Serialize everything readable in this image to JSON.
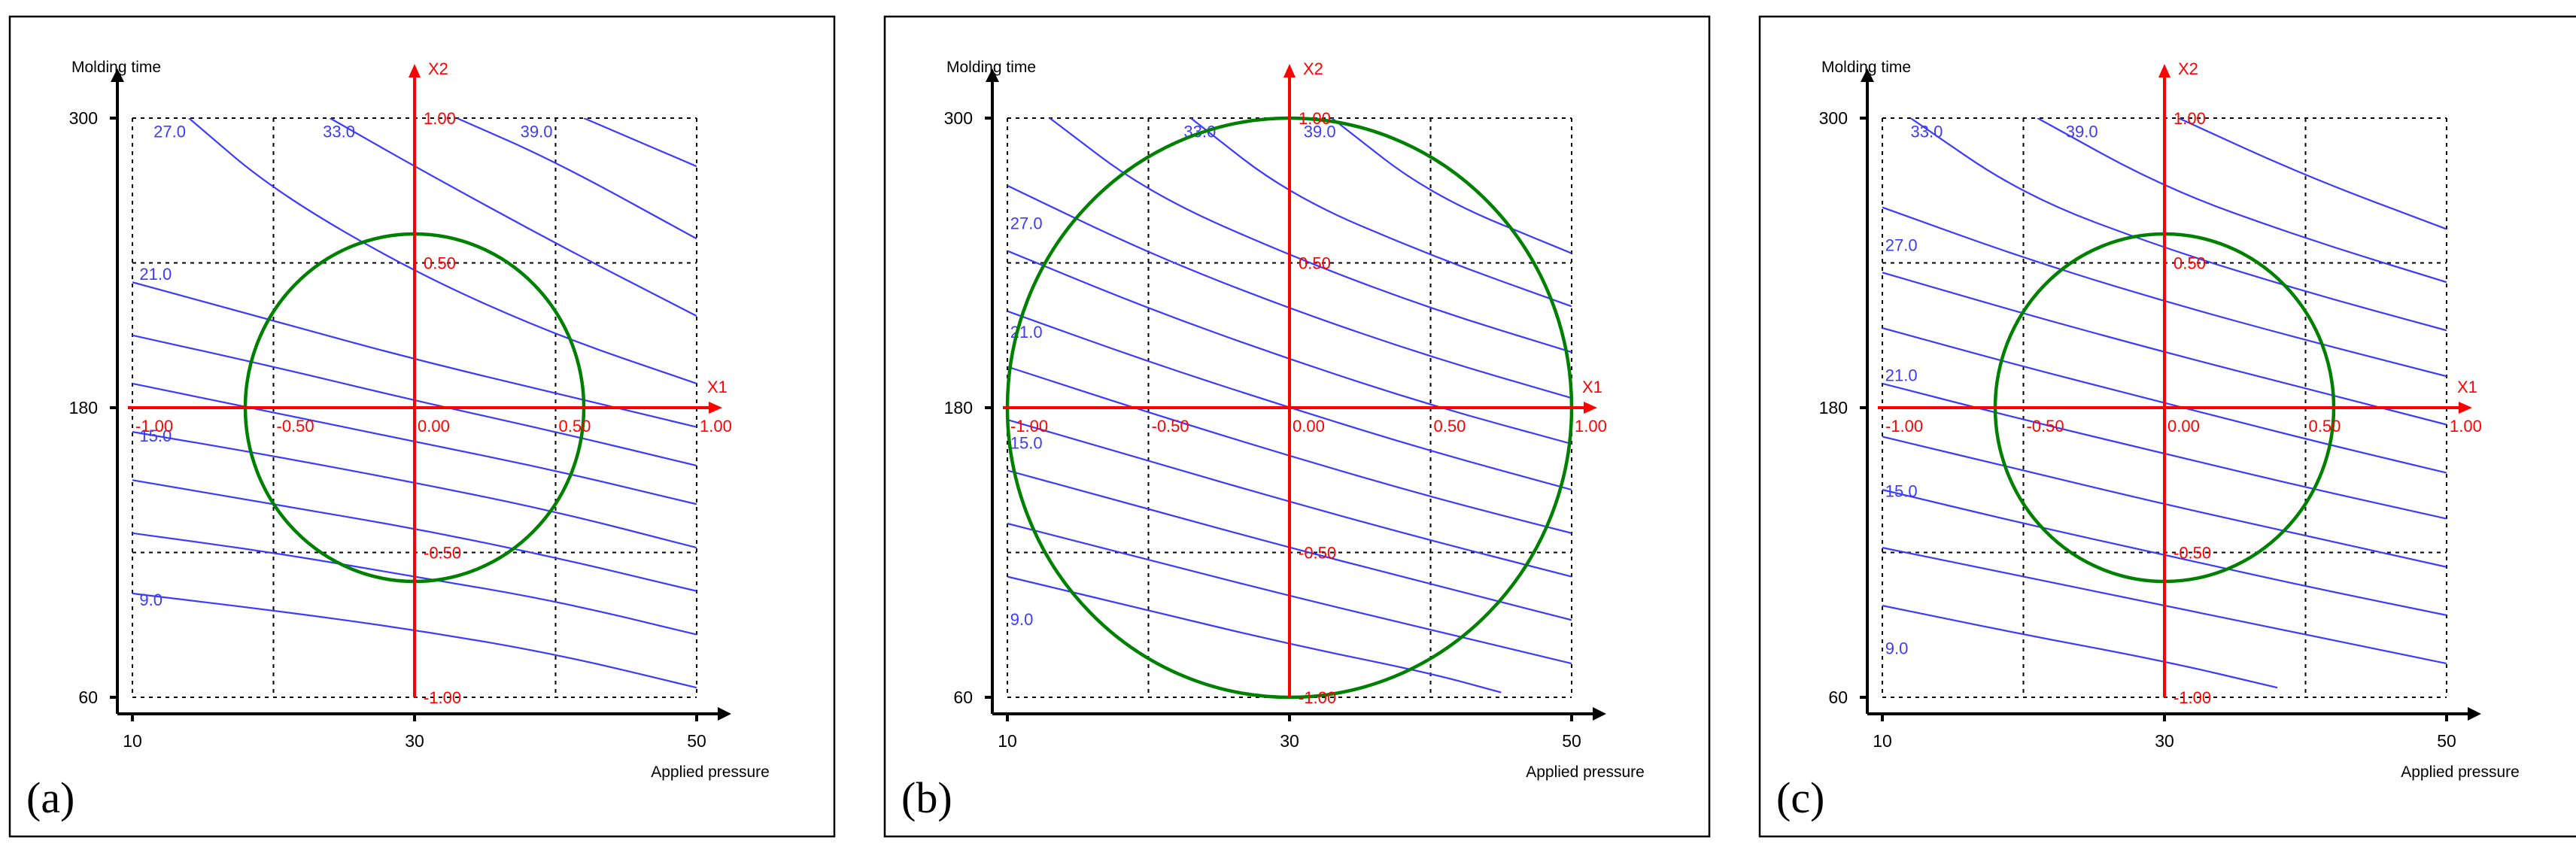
{
  "colors": {
    "axis": "#000000",
    "coded_axis": "#ff0000",
    "contour": "#3b3bff",
    "experimental_region": "#008000",
    "grid": "#000000"
  },
  "chart_data": [
    {
      "type": "contour",
      "panel_label": "(a)",
      "xlabel": "Applied pressure",
      "ylabel": "Molding time",
      "x_ticks": [
        "10",
        "30",
        "50"
      ],
      "y_ticks": [
        "300",
        "180",
        "60"
      ],
      "xlim": [
        10,
        50
      ],
      "ylim": [
        60,
        300
      ],
      "coded_axes": {
        "x_name": "X1",
        "y_name": "X2",
        "x_labels": [
          "-1.00",
          "-0.50",
          "0.00",
          "0.50",
          "1.00"
        ],
        "y_labels": [
          "1.00",
          "0.50",
          "-0.50",
          "-1.00"
        ]
      },
      "contour_labels": [
        "27.0",
        "33.0",
        "39.0",
        "21.0",
        "15.0",
        "9.0"
      ],
      "experimental_region": {
        "center": [
          30,
          180
        ],
        "radius_coded": 0.6
      },
      "contours": [
        {
          "level": 9.0,
          "points": [
            [
              10,
              103
            ],
            [
              20,
              96
            ],
            [
              30,
              88
            ],
            [
              40,
              78
            ],
            [
              50,
              64
            ]
          ]
        },
        {
          "level": 12.0,
          "points": [
            [
              10,
              128
            ],
            [
              20,
              120
            ],
            [
              30,
              110
            ],
            [
              40,
              100
            ],
            [
              50,
              86
            ]
          ]
        },
        {
          "level": 15.0,
          "points": [
            [
              10,
              150
            ],
            [
              20,
              140
            ],
            [
              30,
              130
            ],
            [
              40,
              118
            ],
            [
              50,
              104
            ]
          ]
        },
        {
          "level": 18.0,
          "points": [
            [
              10,
              170
            ],
            [
              20,
              160
            ],
            [
              30,
              149
            ],
            [
              40,
              137
            ],
            [
              50,
              122
            ]
          ]
        },
        {
          "level": 21.0,
          "points": [
            [
              10,
              190
            ],
            [
              20,
              178
            ],
            [
              30,
              166
            ],
            [
              40,
              154
            ],
            [
              50,
              140
            ]
          ]
        },
        {
          "level": 24.0,
          "points": [
            [
              10,
              210
            ],
            [
              20,
              197
            ],
            [
              30,
              183
            ],
            [
              40,
              170
            ],
            [
              50,
              156
            ]
          ]
        },
        {
          "level": 27.0,
          "points": [
            [
              10,
              232
            ],
            [
              20,
              216
            ],
            [
              30,
              200
            ],
            [
              40,
              186
            ],
            [
              50,
              172
            ]
          ]
        },
        {
          "level": 30.0,
          "points": [
            [
              14,
              300
            ],
            [
              20,
              270
            ],
            [
              30,
              236
            ],
            [
              40,
              210
            ],
            [
              50,
              190
            ]
          ]
        },
        {
          "level": 33.0,
          "points": [
            [
              24,
              300
            ],
            [
              30,
              280
            ],
            [
              40,
              248
            ],
            [
              50,
              218
            ]
          ]
        },
        {
          "level": 36.0,
          "points": [
            [
              33,
              300
            ],
            [
              40,
              282
            ],
            [
              50,
              250
            ]
          ]
        },
        {
          "level": 39.0,
          "points": [
            [
              42,
              300
            ],
            [
              50,
              280
            ]
          ]
        }
      ],
      "label_positions": [
        {
          "text": "27.0",
          "at": [
            11.5,
            292
          ]
        },
        {
          "text": "33.0",
          "at": [
            23.5,
            292
          ]
        },
        {
          "text": "39.0",
          "at": [
            37.5,
            292
          ]
        },
        {
          "text": "21.0",
          "at": [
            10.5,
            233
          ]
        },
        {
          "text": "15.0",
          "at": [
            10.5,
            166
          ]
        },
        {
          "text": "9.0",
          "at": [
            10.5,
            98
          ]
        }
      ]
    },
    {
      "type": "contour",
      "panel_label": "(b)",
      "xlabel": "Applied pressure",
      "ylabel": "Molding time",
      "x_ticks": [
        "10",
        "30",
        "50"
      ],
      "y_ticks": [
        "300",
        "180",
        "60"
      ],
      "xlim": [
        10,
        50
      ],
      "ylim": [
        60,
        300
      ],
      "coded_axes": {
        "x_name": "X1",
        "y_name": "X2",
        "x_labels": [
          "-1.00",
          "-0.50",
          "0.00",
          "0.50",
          "1.00"
        ],
        "y_labels": [
          "1.00",
          "0.50",
          "-0.50",
          "-1.00"
        ]
      },
      "contour_labels": [
        "33.0",
        "39.0",
        "27.0",
        "21.0",
        "15.0",
        "9.0"
      ],
      "experimental_region": {
        "center": [
          30,
          180
        ],
        "radius_coded": 1.0
      },
      "contours": [
        {
          "level": 9.0,
          "points": [
            [
              10,
              110
            ],
            [
              20,
              96
            ],
            [
              30,
              82
            ],
            [
              40,
              70
            ],
            [
              45,
              62
            ]
          ]
        },
        {
          "level": 12.0,
          "points": [
            [
              10,
              132
            ],
            [
              20,
              117
            ],
            [
              30,
              102
            ],
            [
              40,
              88
            ],
            [
              50,
              74
            ]
          ]
        },
        {
          "level": 15.0,
          "points": [
            [
              10,
              154
            ],
            [
              20,
              138
            ],
            [
              30,
              122
            ],
            [
              40,
              107
            ],
            [
              50,
              92
            ]
          ]
        },
        {
          "level": 18.0,
          "points": [
            [
              10,
              175
            ],
            [
              20,
              158
            ],
            [
              30,
              141
            ],
            [
              40,
              125
            ],
            [
              50,
              110
            ]
          ]
        },
        {
          "level": 21.0,
          "points": [
            [
              10,
              197
            ],
            [
              20,
              178
            ],
            [
              30,
              160
            ],
            [
              40,
              143
            ],
            [
              50,
              128
            ]
          ]
        },
        {
          "level": 24.0,
          "points": [
            [
              10,
              220
            ],
            [
              20,
              199
            ],
            [
              30,
              180
            ],
            [
              40,
              162
            ],
            [
              50,
              146
            ]
          ]
        },
        {
          "level": 27.0,
          "points": [
            [
              10,
              245
            ],
            [
              20,
              221
            ],
            [
              30,
              200
            ],
            [
              40,
              181
            ],
            [
              50,
              165
            ]
          ]
        },
        {
          "level": 30.0,
          "points": [
            [
              10,
              272
            ],
            [
              20,
              244
            ],
            [
              30,
              221
            ],
            [
              40,
              201
            ],
            [
              50,
              184
            ]
          ]
        },
        {
          "level": 33.0,
          "points": [
            [
              13,
              300
            ],
            [
              20,
              269
            ],
            [
              30,
              243
            ],
            [
              40,
              221
            ],
            [
              50,
              203
            ]
          ]
        },
        {
          "level": 36.0,
          "points": [
            [
              23,
              300
            ],
            [
              30,
              268
            ],
            [
              40,
              243
            ],
            [
              50,
              222
            ]
          ]
        },
        {
          "level": 39.0,
          "points": [
            [
              33,
              300
            ],
            [
              40,
              268
            ],
            [
              50,
              244
            ]
          ]
        }
      ],
      "label_positions": [
        {
          "text": "33.0",
          "at": [
            22.5,
            292
          ]
        },
        {
          "text": "39.0",
          "at": [
            31.0,
            292
          ]
        },
        {
          "text": "27.0",
          "at": [
            10.2,
            254
          ]
        },
        {
          "text": "21.0",
          "at": [
            10.2,
            209
          ]
        },
        {
          "text": "15.0",
          "at": [
            10.2,
            163
          ]
        },
        {
          "text": "9.0",
          "at": [
            10.2,
            90
          ]
        }
      ]
    },
    {
      "type": "contour",
      "panel_label": "(c)",
      "xlabel": "Applied pressure",
      "ylabel": "Molding time",
      "x_ticks": [
        "10",
        "30",
        "50"
      ],
      "y_ticks": [
        "300",
        "180",
        "60"
      ],
      "xlim": [
        10,
        50
      ],
      "ylim": [
        60,
        300
      ],
      "coded_axes": {
        "x_name": "X1",
        "y_name": "X2",
        "x_labels": [
          "-1.00",
          "-0.50",
          "0.00",
          "0.50",
          "1.00"
        ],
        "y_labels": [
          "1.00",
          "0.50",
          "-0.50",
          "-1.00"
        ]
      },
      "contour_labels": [
        "33.0",
        "39.0",
        "27.0",
        "21.0",
        "15.0",
        "9.0"
      ],
      "experimental_region": {
        "center": [
          30,
          180
        ],
        "radius_coded": 0.6
      },
      "contours": [
        {
          "level": 9.0,
          "points": [
            [
              10,
              98
            ],
            [
              20,
              86
            ],
            [
              30,
              75
            ],
            [
              38,
              64
            ]
          ]
        },
        {
          "level": 12.0,
          "points": [
            [
              10,
              122
            ],
            [
              20,
              110
            ],
            [
              30,
              98
            ],
            [
              40,
              86
            ],
            [
              50,
              74
            ]
          ]
        },
        {
          "level": 15.0,
          "points": [
            [
              10,
              146
            ],
            [
              20,
              132
            ],
            [
              30,
              119
            ],
            [
              40,
              106
            ],
            [
              50,
              94
            ]
          ]
        },
        {
          "level": 18.0,
          "points": [
            [
              10,
              168
            ],
            [
              20,
              154
            ],
            [
              30,
              140
            ],
            [
              40,
              127
            ],
            [
              50,
              114
            ]
          ]
        },
        {
          "level": 21.0,
          "points": [
            [
              10,
              190
            ],
            [
              20,
              175
            ],
            [
              30,
              161
            ],
            [
              40,
              147
            ],
            [
              50,
              134
            ]
          ]
        },
        {
          "level": 24.0,
          "points": [
            [
              10,
              213
            ],
            [
              20,
              197
            ],
            [
              30,
              182
            ],
            [
              40,
              167
            ],
            [
              50,
              153
            ]
          ]
        },
        {
          "level": 27.0,
          "points": [
            [
              10,
              236
            ],
            [
              20,
              219
            ],
            [
              30,
              203
            ],
            [
              40,
              188
            ],
            [
              50,
              173
            ]
          ]
        },
        {
          "level": 30.0,
          "points": [
            [
              10,
              263
            ],
            [
              20,
              242
            ],
            [
              30,
              224
            ],
            [
              40,
              208
            ],
            [
              50,
              193
            ]
          ]
        },
        {
          "level": 33.0,
          "points": [
            [
              12,
              300
            ],
            [
              20,
              268
            ],
            [
              30,
              246
            ],
            [
              40,
              228
            ],
            [
              50,
              212
            ]
          ]
        },
        {
          "level": 36.0,
          "points": [
            [
              21,
              300
            ],
            [
              30,
              271
            ],
            [
              40,
              250
            ],
            [
              50,
              232
            ]
          ]
        },
        {
          "level": 39.0,
          "points": [
            [
              31,
              300
            ],
            [
              40,
              276
            ],
            [
              50,
              254
            ]
          ]
        }
      ],
      "label_positions": [
        {
          "text": "33.0",
          "at": [
            12.0,
            292
          ]
        },
        {
          "text": "39.0",
          "at": [
            23.0,
            292
          ]
        },
        {
          "text": "27.0",
          "at": [
            10.2,
            245
          ]
        },
        {
          "text": "21.0",
          "at": [
            10.2,
            191
          ]
        },
        {
          "text": "15.0",
          "at": [
            10.2,
            143
          ]
        },
        {
          "text": "9.0",
          "at": [
            10.2,
            78
          ]
        }
      ]
    }
  ]
}
